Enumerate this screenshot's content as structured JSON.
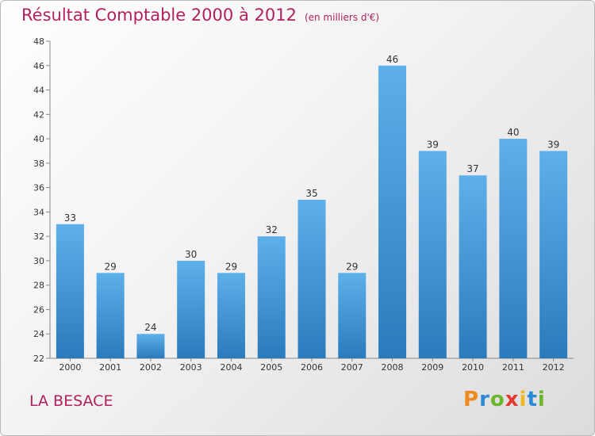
{
  "chart_data": {
    "type": "bar",
    "title": "Résultat Comptable 2000 à 2012",
    "subtitle": "(en milliers d'€)",
    "categories": [
      "2000",
      "2001",
      "2002",
      "2003",
      "2004",
      "2005",
      "2006",
      "2007",
      "2008",
      "2009",
      "2010",
      "2011",
      "2012"
    ],
    "values": [
      33,
      29,
      24,
      30,
      29,
      32,
      35,
      29,
      46,
      39,
      37,
      40,
      39
    ],
    "ylim": [
      22,
      48
    ],
    "yticks": [
      22,
      24,
      26,
      28,
      30,
      32,
      34,
      36,
      38,
      40,
      42,
      44,
      46,
      48
    ],
    "grid": false,
    "xlabel": "",
    "ylabel": "",
    "bar_color_top": "#5eb0ea",
    "bar_color_bottom": "#2a7bbd"
  },
  "commune": "LA BESACE",
  "logo": {
    "letters": [
      "P",
      "r",
      "o",
      "x",
      "i",
      "t",
      "i"
    ],
    "colors": [
      "#f08a1e",
      "#2a8ad6",
      "#6cb52d",
      "#e23a2e",
      "#f0b81e",
      "#2a8ad6",
      "#6cb52d"
    ]
  }
}
